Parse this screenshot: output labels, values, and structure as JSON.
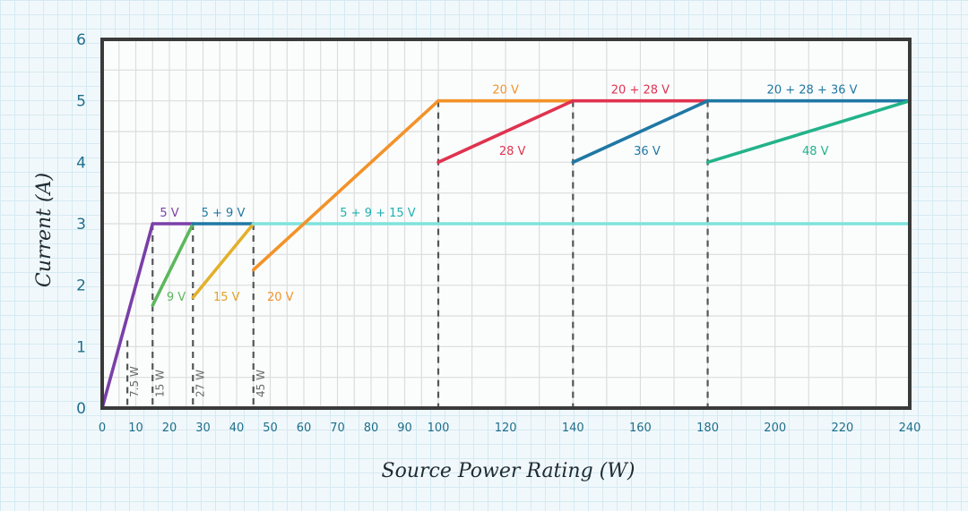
{
  "chart_data": {
    "type": "line",
    "xlabel": "Source Power Rating (W)",
    "ylabel": "Current (A)",
    "ylim": [
      0,
      6
    ],
    "yticks": [
      0,
      1,
      2,
      3,
      4,
      5,
      6
    ],
    "xticks": [
      0,
      10,
      20,
      30,
      40,
      50,
      60,
      70,
      80,
      90,
      100,
      120,
      140,
      160,
      180,
      200,
      220,
      240
    ],
    "x_axis_note": "piecewise scale: 0-100 W compressed, 100-240 W expanded",
    "grid": true,
    "series": [
      {
        "name": "5 V",
        "color": "#7a3fa8",
        "points": [
          [
            0,
            0
          ],
          [
            15,
            3
          ]
        ]
      },
      {
        "name": "5 V",
        "color": "#7a3fa8",
        "points": [
          [
            15,
            3
          ],
          [
            27,
            3
          ]
        ]
      },
      {
        "name": "9 V",
        "color": "#5cb85c",
        "points": [
          [
            15,
            1.67
          ],
          [
            27,
            3
          ]
        ]
      },
      {
        "name": "5 + 9 V",
        "color": "#1f78a4",
        "points": [
          [
            27,
            3
          ],
          [
            45,
            3
          ]
        ]
      },
      {
        "name": "15 V",
        "color": "#e3b02a",
        "points": [
          [
            27,
            1.8
          ],
          [
            45,
            3
          ]
        ]
      },
      {
        "name": "5 + 9 + 15 V",
        "color": "#7fe3dc",
        "points": [
          [
            45,
            3
          ],
          [
            240,
            3
          ]
        ]
      },
      {
        "name": "20 V",
        "color": "#f39229",
        "points": [
          [
            45,
            2.25
          ],
          [
            100,
            5
          ]
        ]
      },
      {
        "name": "20 V",
        "color": "#f39229",
        "points": [
          [
            100,
            5
          ],
          [
            140,
            5
          ]
        ]
      },
      {
        "name": "28 V",
        "color": "#e0334f",
        "points": [
          [
            100,
            4
          ],
          [
            140,
            5
          ]
        ]
      },
      {
        "name": "20 + 28 V",
        "color": "#e0334f",
        "points": [
          [
            140,
            5
          ],
          [
            180,
            5
          ]
        ]
      },
      {
        "name": "36 V",
        "color": "#1f78a4",
        "points": [
          [
            140,
            4
          ],
          [
            180,
            5
          ]
        ]
      },
      {
        "name": "20 + 28 + 36 V",
        "color": "#1f78a4",
        "points": [
          [
            180,
            5
          ],
          [
            240,
            5
          ]
        ]
      },
      {
        "name": "48 V",
        "color": "#22b38a",
        "points": [
          [
            180,
            4
          ],
          [
            240,
            5
          ]
        ]
      }
    ],
    "labels": [
      {
        "text": "5 V",
        "x": 20,
        "y": 3.12,
        "color": "#7a3fa8"
      },
      {
        "text": "5 + 9 V",
        "x": 36,
        "y": 3.12,
        "color": "#1f78a4"
      },
      {
        "text": "5 + 9 + 15 V",
        "x": 82,
        "y": 3.12,
        "color": "#1fb0b0"
      },
      {
        "text": "9 V",
        "x": 22,
        "y": 1.75,
        "color": "#5cb85c"
      },
      {
        "text": "15 V",
        "x": 37,
        "y": 1.75,
        "color": "#e3a020"
      },
      {
        "text": "20 V",
        "x": 53,
        "y": 1.75,
        "color": "#f39229"
      },
      {
        "text": "20 V",
        "x": 120,
        "y": 5.12,
        "color": "#f39229"
      },
      {
        "text": "20 + 28 V",
        "x": 160,
        "y": 5.12,
        "color": "#e0334f"
      },
      {
        "text": "20 + 28 + 36 V",
        "x": 211,
        "y": 5.12,
        "color": "#1f78a4"
      },
      {
        "text": "28 V",
        "x": 122,
        "y": 4.12,
        "color": "#e0334f"
      },
      {
        "text": "36 V",
        "x": 162,
        "y": 4.12,
        "color": "#1f78a4"
      },
      {
        "text": "48 V",
        "x": 212,
        "y": 4.12,
        "color": "#22b38a"
      }
    ],
    "markers": [
      {
        "x": 7.5,
        "top": 1.1,
        "label": "7.5 W"
      },
      {
        "x": 15,
        "top": 3,
        "label": "15 W"
      },
      {
        "x": 27,
        "top": 3,
        "label": "27 W"
      },
      {
        "x": 45,
        "top": 3,
        "label": "45 W"
      },
      {
        "x": 100,
        "top": 5,
        "label": ""
      },
      {
        "x": 140,
        "top": 5,
        "label": ""
      },
      {
        "x": 180,
        "top": 5,
        "label": ""
      },
      {
        "x": 240,
        "top": 5,
        "label": ""
      }
    ]
  }
}
